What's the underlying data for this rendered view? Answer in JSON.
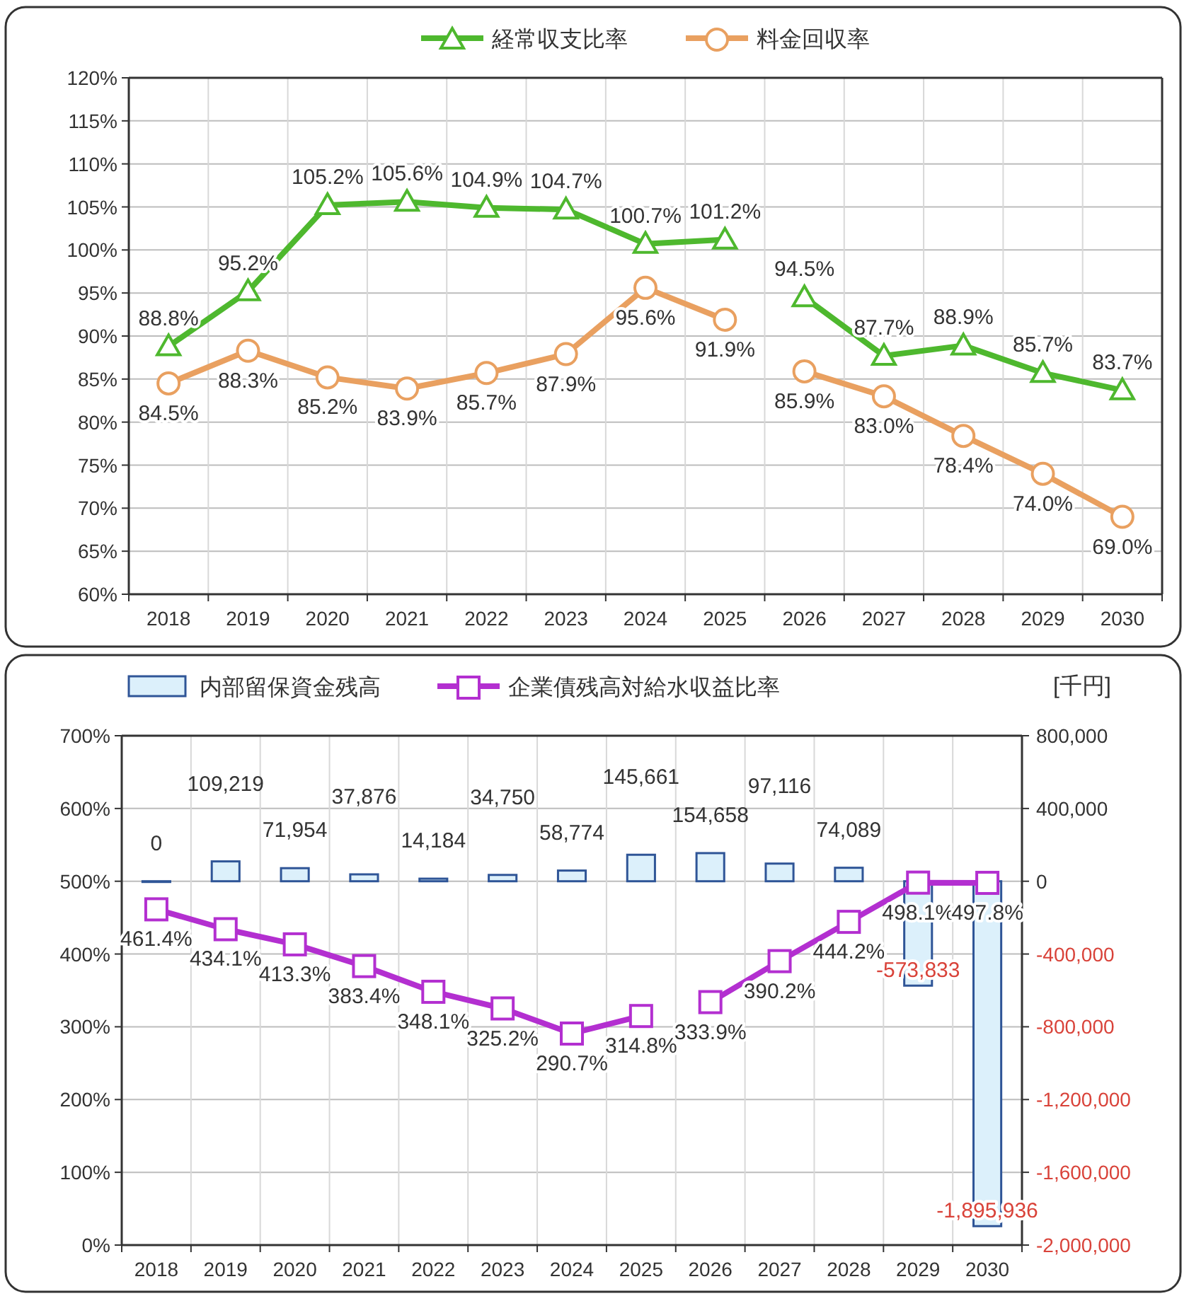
{
  "chart_data": [
    {
      "type": "line",
      "categories": [
        "2018",
        "2019",
        "2020",
        "2021",
        "2022",
        "2023",
        "2024",
        "2025",
        "2026",
        "2027",
        "2028",
        "2029",
        "2030"
      ],
      "series": [
        {
          "name": "経常収支比率",
          "color": "#4eb82e",
          "marker": "triangle",
          "values": [
            88.8,
            95.2,
            105.2,
            105.6,
            104.9,
            104.7,
            100.7,
            101.2,
            null,
            null,
            null,
            null,
            null
          ],
          "value_labels": [
            "88.8%",
            "95.2%",
            "105.2%",
            "105.6%",
            "104.9%",
            "104.7%",
            "100.7%",
            "101.2%",
            null,
            null,
            null,
            null,
            null
          ]
        },
        {
          "name": "料金回収率",
          "color": "#e9a060",
          "marker": "circle",
          "values": [
            84.5,
            88.3,
            85.2,
            83.9,
            85.7,
            87.9,
            95.6,
            91.9,
            null,
            null,
            null,
            null,
            null
          ],
          "value_labels": [
            "84.5%",
            "88.3%",
            "85.2%",
            "83.9%",
            "85.7%",
            "87.9%",
            "95.6%",
            "91.9%",
            null,
            null,
            null,
            null,
            null
          ]
        },
        {
          "color": "#4eb82e",
          "marker": "triangle",
          "values": [
            null,
            null,
            null,
            null,
            null,
            null,
            null,
            null,
            94.5,
            87.7,
            88.9,
            85.7,
            83.7
          ],
          "value_labels": [
            null,
            null,
            null,
            null,
            null,
            null,
            null,
            null,
            "94.5%",
            "87.7%",
            "88.9%",
            "85.7%",
            "83.7%"
          ]
        },
        {
          "color": "#e9a060",
          "marker": "circle",
          "values": [
            null,
            null,
            null,
            null,
            null,
            null,
            null,
            null,
            85.9,
            83.0,
            78.4,
            74.0,
            69.0
          ],
          "value_labels": [
            null,
            null,
            null,
            null,
            null,
            null,
            null,
            null,
            "85.9%",
            "83.0%",
            "78.4%",
            "74.0%",
            "69.0%"
          ]
        }
      ],
      "ylim": [
        60,
        120
      ],
      "yticks": [
        {
          "value": 60,
          "label": "60%"
        },
        {
          "value": 65,
          "label": "65%"
        },
        {
          "value": 70,
          "label": "70%"
        },
        {
          "value": 75,
          "label": "75%"
        },
        {
          "value": 80,
          "label": "80%"
        },
        {
          "value": 85,
          "label": "85%"
        },
        {
          "value": 90,
          "label": "90%"
        },
        {
          "value": 95,
          "label": "95%"
        },
        {
          "value": 100,
          "label": "100%"
        },
        {
          "value": 105,
          "label": "105%"
        },
        {
          "value": 110,
          "label": "110%"
        },
        {
          "value": 115,
          "label": "115%"
        },
        {
          "value": 120,
          "label": "120%"
        }
      ],
      "grid": true,
      "legend": "top"
    },
    {
      "type": "bar",
      "categories": [
        "2018",
        "2019",
        "2020",
        "2021",
        "2022",
        "2023",
        "2024",
        "2025",
        "2026",
        "2027",
        "2028",
        "2029",
        "2030"
      ],
      "y2label": "[千円]",
      "series": [
        {
          "name": "内部留保資金残高",
          "type": "bar",
          "axis": "y2",
          "color": "#dcf0fb",
          "values": [
            0,
            109219,
            71954,
            37876,
            14184,
            34750,
            58774,
            145661,
            154658,
            97116,
            74089,
            -573833,
            -1895936
          ],
          "value_labels": [
            "0",
            "109,219",
            "71,954",
            "37,876",
            "14,184",
            "34,750",
            "58,774",
            "145,661",
            "154,658",
            "97,116",
            "74,089",
            "-573,833",
            "-1,895,936"
          ]
        },
        {
          "name": "企業債残高対給水収益比率",
          "type": "line",
          "color": "#b32fd0",
          "marker": "square",
          "values": [
            461.4,
            434.1,
            413.3,
            383.4,
            348.1,
            325.2,
            290.7,
            314.8,
            null,
            null,
            null,
            null,
            null
          ],
          "value_labels": [
            "461.4%",
            "434.1%",
            "413.3%",
            "383.4%",
            "348.1%",
            "325.2%",
            "290.7%",
            "314.8%",
            null,
            null,
            null,
            null,
            null
          ]
        },
        {
          "type": "line",
          "color": "#b32fd0",
          "marker": "square",
          "values": [
            null,
            null,
            null,
            null,
            null,
            null,
            null,
            null,
            333.9,
            390.2,
            444.2,
            498.1,
            497.8
          ],
          "value_labels": [
            null,
            null,
            null,
            null,
            null,
            null,
            null,
            null,
            "333.9%",
            "390.2%",
            "444.2%",
            "498.1%",
            "497.8%"
          ]
        }
      ],
      "ylim": [
        0,
        700
      ],
      "yticks": [
        {
          "value": 0,
          "label": "0%"
        },
        {
          "value": 100,
          "label": "100%"
        },
        {
          "value": 200,
          "label": "200%"
        },
        {
          "value": 300,
          "label": "300%"
        },
        {
          "value": 400,
          "label": "400%"
        },
        {
          "value": 500,
          "label": "500%"
        },
        {
          "value": 600,
          "label": "600%"
        },
        {
          "value": 700,
          "label": "700%"
        }
      ],
      "y2lim": [
        -2000000,
        800000
      ],
      "y2ticks": [
        {
          "value": -2000000,
          "label": "-2,000,000"
        },
        {
          "value": -1600000,
          "label": "-1,600,000"
        },
        {
          "value": -1200000,
          "label": "-1,200,000"
        },
        {
          "value": -800000,
          "label": "-800,000"
        },
        {
          "value": -400000,
          "label": "-400,000"
        },
        {
          "value": 0,
          "label": "0"
        },
        {
          "value": 400000,
          "label": "400,000"
        },
        {
          "value": 800000,
          "label": "800,000"
        }
      ],
      "grid": true,
      "legend": "top left"
    }
  ]
}
